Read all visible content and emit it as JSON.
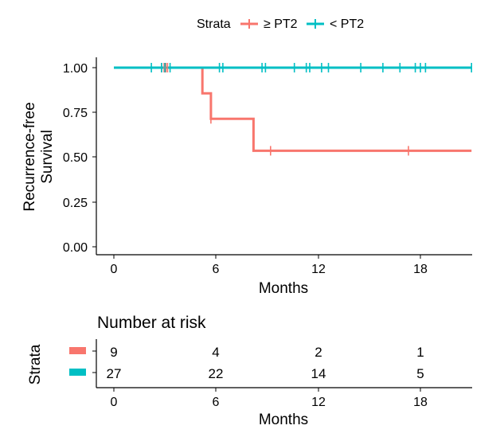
{
  "legend": {
    "title": "Strata",
    "entries": [
      {
        "label": "≥ PT2",
        "color": "#F8766D"
      },
      {
        "label": "< PT2",
        "color": "#00BFC4"
      }
    ]
  },
  "chart_data": {
    "type": "line",
    "subtype": "kaplan-meier",
    "ylabel_line1": "Recurrence-free",
    "ylabel_line2": "Survival",
    "xlabel": "Months",
    "xlim": [
      0,
      21
    ],
    "ylim": [
      0,
      1
    ],
    "x_ticks": [
      "0",
      "6",
      "12",
      "18"
    ],
    "y_ticks": [
      "0.00",
      "0.25",
      "0.50",
      "0.75",
      "1.00"
    ],
    "grid": false,
    "legend_position": "top",
    "series": [
      {
        "name": "≥ PT2",
        "color": "#F8766D",
        "steps": [
          [
            0,
            1.0
          ],
          [
            5.2,
            0.857
          ],
          [
            5.7,
            0.714
          ],
          [
            8.2,
            0.536
          ],
          [
            21,
            0.536
          ]
        ],
        "censor_x": [
          2.8,
          2.95,
          3.05,
          3.15,
          5.7,
          9.2,
          17.3
        ]
      },
      {
        "name": "< PT2",
        "color": "#00BFC4",
        "steps": [
          [
            0,
            1.0
          ],
          [
            21,
            1.0
          ]
        ],
        "censor_x": [
          2.2,
          2.8,
          3.0,
          3.3,
          6.2,
          6.4,
          8.7,
          8.9,
          10.6,
          11.3,
          11.5,
          12.2,
          12.6,
          14.5,
          15.8,
          16.8,
          17.7,
          18.0,
          18.3,
          21.0
        ]
      }
    ]
  },
  "risk_table": {
    "title": "Number at risk",
    "ylabel": "Strata",
    "xlabel": "Months",
    "x_ticks": [
      "0",
      "6",
      "12",
      "18"
    ],
    "rows": [
      {
        "color": "#F8766D",
        "values": [
          "9",
          "4",
          "2",
          "1"
        ]
      },
      {
        "color": "#00BFC4",
        "values": [
          "27",
          "22",
          "14",
          "5"
        ]
      }
    ]
  }
}
